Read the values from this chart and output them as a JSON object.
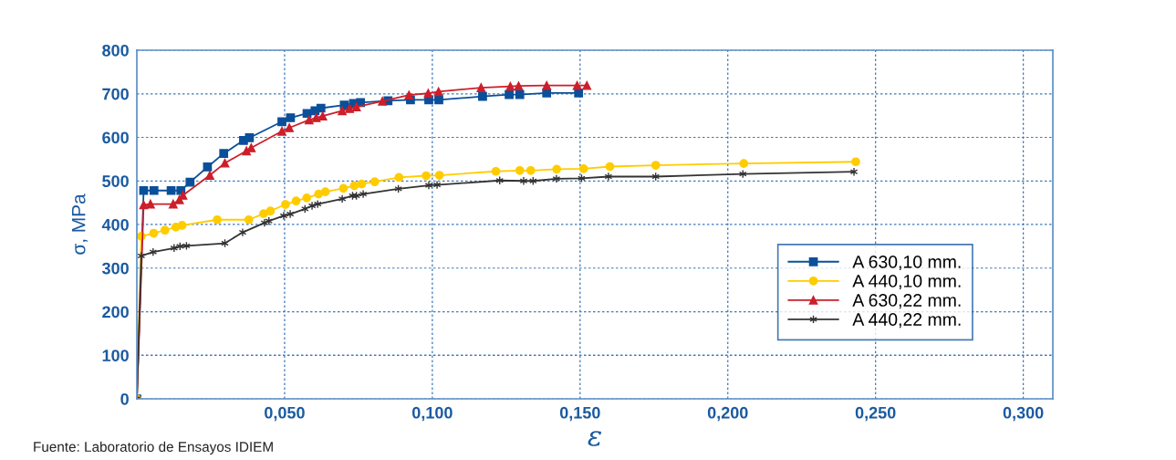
{
  "chart_data": {
    "type": "line",
    "xlabel": "ε",
    "ylabel": "σ, MPa",
    "annotations": [
      "Fuente: Laboratorio de Ensayos IDIEM"
    ],
    "xlim": [
      0,
      0.31
    ],
    "ylim": [
      0,
      800
    ],
    "xticks": [
      {
        "value": 0.05,
        "label": "0,050"
      },
      {
        "value": 0.1,
        "label": "0,100"
      },
      {
        "value": 0.15,
        "label": "0,150"
      },
      {
        "value": 0.2,
        "label": "0,200"
      },
      {
        "value": 0.25,
        "label": "0,250"
      },
      {
        "value": 0.3,
        "label": "0,300"
      }
    ],
    "yticks": [
      0,
      100,
      200,
      300,
      400,
      500,
      600,
      700,
      800
    ],
    "grid": true,
    "legend": "right",
    "line_style": "solid",
    "series": [
      {
        "name": "A 630,10 mm.",
        "color": "#0a4f9a",
        "marker": "square",
        "x": [
          0,
          0.0023,
          0.0058,
          0.0116,
          0.0149,
          0.018,
          0.0239,
          0.0294,
          0.0361,
          0.0381,
          0.0491,
          0.052,
          0.0576,
          0.0603,
          0.0623,
          0.0702,
          0.0733,
          0.0757,
          0.085,
          0.0926,
          0.0988,
          0.1022,
          0.117,
          0.126,
          0.1296,
          0.1387,
          0.1495
        ],
        "values": [
          0,
          478,
          478,
          478,
          478,
          497,
          532,
          563,
          593,
          599,
          636,
          645,
          655,
          661,
          667,
          674,
          678,
          680,
          684,
          686,
          686,
          686,
          694,
          698,
          698,
          702,
          702
        ]
      },
      {
        "name": "A 440,10 mm.",
        "color": "#ffcc00",
        "marker": "circle",
        "x": [
          0,
          0.0015,
          0.0057,
          0.0095,
          0.0132,
          0.0153,
          0.0272,
          0.0379,
          0.0429,
          0.0452,
          0.0503,
          0.0539,
          0.0575,
          0.0615,
          0.0638,
          0.0699,
          0.0736,
          0.0761,
          0.0805,
          0.0887,
          0.0979,
          0.1024,
          0.1215,
          0.1296,
          0.1333,
          0.1421,
          0.1512,
          0.1601,
          0.1756,
          0.2054,
          0.2433
        ],
        "values": [
          0,
          373,
          380,
          387,
          394,
          398,
          411,
          411,
          425,
          431,
          446,
          454,
          461,
          470,
          475,
          483,
          489,
          493,
          498,
          508,
          512,
          513,
          522,
          524,
          524,
          527,
          528,
          533,
          536,
          540,
          544
        ]
      },
      {
        "name": "A 630,22 mm.",
        "color": "#cc1f2a",
        "marker": "triangle",
        "x": [
          0,
          0.0023,
          0.0046,
          0.0123,
          0.0144,
          0.0156,
          0.0247,
          0.0298,
          0.0371,
          0.0387,
          0.0491,
          0.0516,
          0.0583,
          0.0607,
          0.0629,
          0.0695,
          0.072,
          0.0743,
          0.0831,
          0.0921,
          0.0986,
          0.1021,
          0.1165,
          0.1264,
          0.1292,
          0.1387,
          0.149,
          0.1523
        ],
        "values": [
          0,
          445,
          447,
          447,
          457,
          467,
          513,
          541,
          569,
          576,
          614,
          622,
          640,
          645,
          649,
          661,
          666,
          670,
          683,
          697,
          701,
          705,
          714,
          717,
          718,
          719,
          719,
          719
        ]
      },
      {
        "name": "A 440,22 mm.",
        "color": "#333333",
        "marker": "cross",
        "x": [
          0,
          0.0015,
          0.0055,
          0.0126,
          0.0146,
          0.0168,
          0.0298,
          0.0358,
          0.0432,
          0.0447,
          0.0497,
          0.0519,
          0.0569,
          0.0593,
          0.0612,
          0.0695,
          0.073,
          0.0743,
          0.0766,
          0.0885,
          0.0988,
          0.1016,
          0.1228,
          0.1309,
          0.1341,
          0.142,
          0.1505,
          0.1596,
          0.1756,
          0.2051,
          0.2427
        ],
        "values": [
          0,
          328,
          337,
          346,
          350,
          351,
          357,
          382,
          404,
          408,
          420,
          424,
          436,
          443,
          447,
          459,
          466,
          466,
          470,
          482,
          490,
          491,
          501,
          500,
          500,
          505,
          506,
          510,
          510,
          516,
          521
        ]
      }
    ]
  }
}
